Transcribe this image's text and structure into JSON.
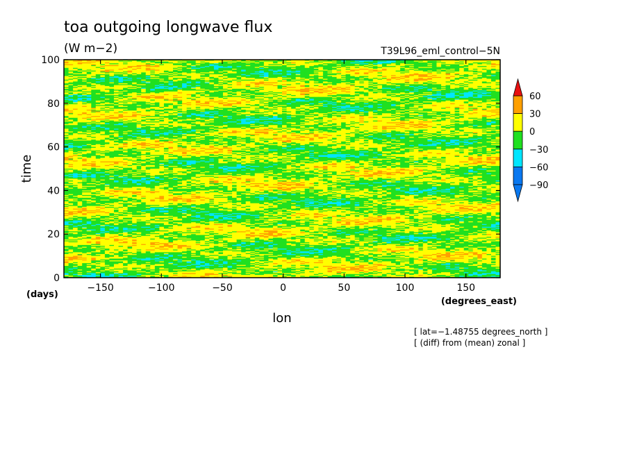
{
  "chart_data": {
    "type": "heatmap",
    "title": "toa outgoing longwave flux",
    "units": "(W m−2)",
    "run_label": "T39L96_eml_control−5N",
    "xlabel": "lon",
    "ylabel": "time",
    "xunits": "(degrees_east)",
    "yunits": "(days)",
    "xlim": [
      -180,
      178.125
    ],
    "ylim": [
      0,
      100
    ],
    "xticks": [
      -150,
      -100,
      -50,
      0,
      50,
      100,
      150
    ],
    "yticks": [
      0,
      20,
      40,
      60,
      80,
      100
    ],
    "xtick_labels": [
      "−150",
      "−100",
      "−50",
      "0",
      "50",
      "100",
      "150"
    ],
    "ytick_labels": [
      "0",
      "20",
      "40",
      "60",
      "80",
      "100"
    ],
    "info_lines": [
      "[ lat=−1.48755 degrees_north ]",
      "[ (diff) from (mean) zonal ]"
    ],
    "colorbar": {
      "levels": [
        -90,
        -60,
        -30,
        0,
        30,
        60
      ],
      "level_labels": [
        "−90",
        "−60",
        "−30",
        "0",
        "30",
        "60"
      ],
      "colors": [
        "#0a78f0",
        "#00e6ff",
        "#20e020",
        "#ffff00",
        "#ffa000",
        "#e81010"
      ],
      "extend": "both"
    }
  }
}
